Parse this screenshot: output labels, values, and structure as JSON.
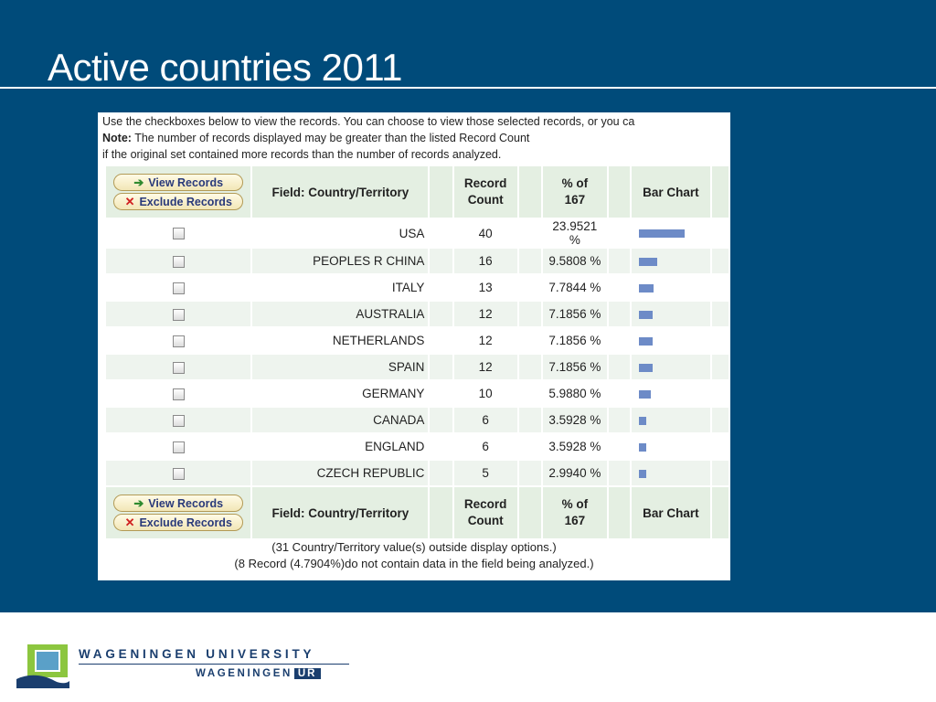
{
  "slide": {
    "title": "Active countries 2011"
  },
  "panel": {
    "intro_line1": "Use the checkboxes below to view the records. You can choose to view those selected records, or you ca",
    "note_label": "Note:",
    "intro_line2": " The number of records displayed may be greater than the listed Record Count",
    "intro_line3": "if the original set contained more records than the number of records analyzed."
  },
  "buttons": {
    "view_records": "View Records",
    "exclude_records": "Exclude Records"
  },
  "table": {
    "header": {
      "field": "Field: Country/Territory",
      "record_count_1": "Record",
      "record_count_2": "Count",
      "pct_1": "% of",
      "pct_2": "167",
      "bar_chart": "Bar Chart"
    },
    "rows": [
      {
        "country": "USA",
        "count": "40",
        "percent": "23.9521 %"
      },
      {
        "country": "PEOPLES R CHINA",
        "count": "16",
        "percent": "9.5808 %"
      },
      {
        "country": "ITALY",
        "count": "13",
        "percent": "7.7844 %"
      },
      {
        "country": "AUSTRALIA",
        "count": "12",
        "percent": "7.1856 %"
      },
      {
        "country": "NETHERLANDS",
        "count": "12",
        "percent": "7.1856 %"
      },
      {
        "country": "SPAIN",
        "count": "12",
        "percent": "7.1856 %"
      },
      {
        "country": "GERMANY",
        "count": "10",
        "percent": "5.9880 %"
      },
      {
        "country": "CANADA",
        "count": "6",
        "percent": "3.5928 %"
      },
      {
        "country": "ENGLAND",
        "count": "6",
        "percent": "3.5928 %"
      },
      {
        "country": "CZECH REPUBLIC",
        "count": "5",
        "percent": "2.9940 %"
      }
    ]
  },
  "notes": {
    "outside": "(31 Country/Territory value(s) outside display options.)",
    "missing": "(8 Record (4.7904%)do not contain data in the field being analyzed.)"
  },
  "footer": {
    "university": "WAGENINGEN UNIVERSITY",
    "ur_prefix": "WAGENINGEN",
    "ur_badge": "UR"
  },
  "colors": {
    "slide_background": "#004b7a",
    "bar": "#6d8bc7",
    "header_cell": "#e4efe2",
    "brand_navy": "#1a3e6e",
    "logo_green": "#8cc63f"
  }
}
